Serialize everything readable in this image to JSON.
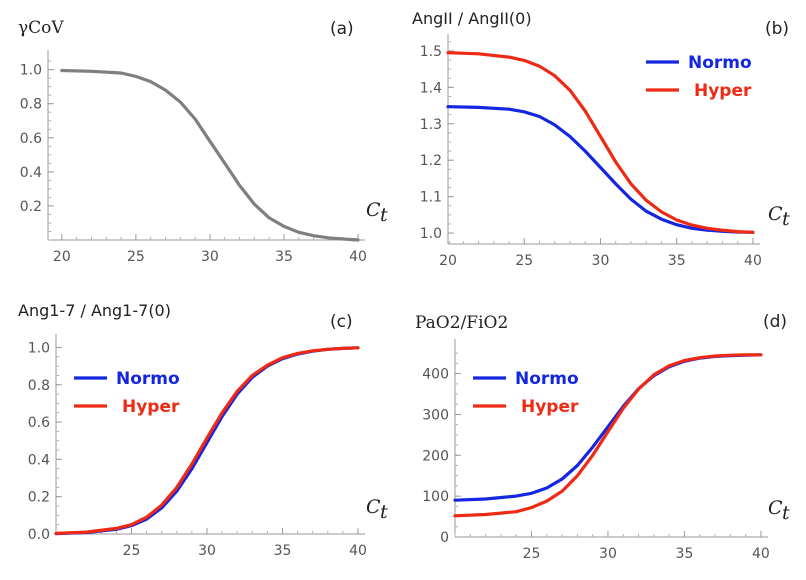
{
  "chart_data": [
    {
      "id": "a",
      "type": "line",
      "panel_label": "(a)",
      "title": "γCoV",
      "xlabel": "C",
      "xlabel_sub": "t",
      "xlim": [
        19.2,
        40.2
      ],
      "ylim": [
        0,
        1.08
      ],
      "x_ticks": [
        20,
        25,
        30,
        35,
        40
      ],
      "x_tick_labels": [
        "20",
        "25",
        "30",
        "35",
        "40"
      ],
      "y_ticks": [
        0.2,
        0.4,
        0.6,
        0.8,
        1.0
      ],
      "y_tick_labels": [
        "0.2",
        "0.4",
        "0.6",
        "0.8",
        "1.0"
      ],
      "legend_position": "none",
      "series": [
        {
          "color": "#7f7f7f",
          "x": [
            20,
            22,
            24,
            25,
            26,
            27,
            28,
            29,
            30,
            31,
            32,
            33,
            34,
            35,
            36,
            37,
            38,
            39,
            40
          ],
          "y": [
            0.995,
            0.99,
            0.98,
            0.96,
            0.93,
            0.88,
            0.81,
            0.71,
            0.58,
            0.45,
            0.32,
            0.21,
            0.13,
            0.08,
            0.045,
            0.025,
            0.013,
            0.006,
            0.0
          ]
        }
      ]
    },
    {
      "id": "b",
      "type": "line",
      "panel_label": "(b)",
      "title": "AngII / AngII(0)",
      "xlabel": "C",
      "xlabel_sub": "t",
      "xlim": [
        20,
        40.2
      ],
      "ylim": [
        0.97,
        1.53
      ],
      "x_ticks": [
        20,
        25,
        30,
        35,
        40
      ],
      "x_tick_labels": [
        "20",
        "25",
        "30",
        "35",
        "40"
      ],
      "y_ticks": [
        1.0,
        1.1,
        1.2,
        1.3,
        1.4,
        1.5
      ],
      "y_tick_labels": [
        "1.0",
        "1.1",
        "1.2",
        "1.3",
        "1.4",
        "1.5"
      ],
      "legend_position": "top-right",
      "series": [
        {
          "name": "Normo",
          "color": "#1426e0",
          "x": [
            20,
            22,
            24,
            25,
            26,
            27,
            28,
            29,
            30,
            31,
            32,
            33,
            34,
            35,
            36,
            37,
            38,
            39,
            40
          ],
          "y": [
            1.347,
            1.345,
            1.34,
            1.333,
            1.32,
            1.297,
            1.265,
            1.225,
            1.18,
            1.135,
            1.093,
            1.06,
            1.038,
            1.023,
            1.013,
            1.008,
            1.005,
            1.003,
            1.002
          ]
        },
        {
          "name": "Hyper",
          "color": "#ee2a14",
          "x": [
            20,
            22,
            24,
            25,
            26,
            27,
            28,
            29,
            30,
            31,
            32,
            33,
            34,
            35,
            36,
            37,
            38,
            39,
            40
          ],
          "y": [
            1.495,
            1.492,
            1.483,
            1.474,
            1.458,
            1.432,
            1.392,
            1.335,
            1.265,
            1.195,
            1.135,
            1.09,
            1.058,
            1.036,
            1.022,
            1.013,
            1.008,
            1.004,
            1.002
          ]
        }
      ]
    },
    {
      "id": "c",
      "type": "line",
      "panel_label": "(c)",
      "title": "Ang1-7 / Ang1-7(0)",
      "xlabel": "C",
      "xlabel_sub": "t",
      "xlim": [
        20,
        40.2
      ],
      "ylim": [
        0,
        1.04
      ],
      "x_ticks": [
        25,
        30,
        35,
        40
      ],
      "x_tick_labels": [
        "25",
        "30",
        "35",
        "40"
      ],
      "y_ticks": [
        0.0,
        0.2,
        0.4,
        0.6,
        0.8,
        1.0
      ],
      "y_tick_labels": [
        "0.0",
        "0.2",
        "0.4",
        "0.6",
        "0.8",
        "1.0"
      ],
      "legend_position": "top-left",
      "series": [
        {
          "name": "Normo",
          "color": "#1426e0",
          "x": [
            20,
            22,
            24,
            25,
            26,
            27,
            28,
            29,
            30,
            31,
            32,
            33,
            34,
            35,
            36,
            37,
            38,
            39,
            40
          ],
          "y": [
            0.002,
            0.008,
            0.025,
            0.045,
            0.08,
            0.14,
            0.23,
            0.35,
            0.49,
            0.63,
            0.75,
            0.84,
            0.9,
            0.94,
            0.965,
            0.98,
            0.99,
            0.995,
            0.998
          ]
        },
        {
          "name": "Hyper",
          "color": "#ee2a14",
          "x": [
            20,
            22,
            24,
            25,
            26,
            27,
            28,
            29,
            30,
            31,
            32,
            33,
            34,
            35,
            36,
            37,
            38,
            39,
            40
          ],
          "y": [
            0.003,
            0.01,
            0.03,
            0.05,
            0.09,
            0.155,
            0.25,
            0.375,
            0.515,
            0.65,
            0.765,
            0.85,
            0.905,
            0.945,
            0.968,
            0.982,
            0.99,
            0.995,
            0.998
          ]
        }
      ]
    },
    {
      "id": "d",
      "type": "line",
      "panel_label": "(d)",
      "title": "PaO2/FiO2",
      "xlabel": "C",
      "xlabel_sub": "t",
      "xlim": [
        20,
        40.2
      ],
      "ylim": [
        0,
        470
      ],
      "x_ticks": [
        25,
        30,
        35,
        40
      ],
      "x_tick_labels": [
        "25",
        "30",
        "35",
        "40"
      ],
      "y_ticks": [
        0,
        100,
        200,
        300,
        400
      ],
      "y_tick_labels": [
        "0",
        "100",
        "200",
        "300",
        "400"
      ],
      "legend_position": "top-left",
      "series": [
        {
          "name": "Normo",
          "color": "#1426e0",
          "x": [
            20,
            22,
            24,
            25,
            26,
            27,
            28,
            29,
            30,
            31,
            32,
            33,
            34,
            35,
            36,
            37,
            38,
            39,
            40
          ],
          "y": [
            90,
            93,
            100,
            107,
            120,
            142,
            175,
            220,
            270,
            320,
            363,
            395,
            417,
            430,
            438,
            442,
            444,
            445,
            446
          ]
        },
        {
          "name": "Hyper",
          "color": "#ee2a14",
          "x": [
            20,
            22,
            24,
            25,
            26,
            27,
            28,
            29,
            30,
            31,
            32,
            33,
            34,
            35,
            36,
            37,
            38,
            39,
            40
          ],
          "y": [
            52,
            55,
            62,
            72,
            88,
            112,
            150,
            200,
            258,
            315,
            362,
            397,
            419,
            432,
            439,
            443,
            445,
            446,
            446
          ]
        }
      ]
    }
  ]
}
